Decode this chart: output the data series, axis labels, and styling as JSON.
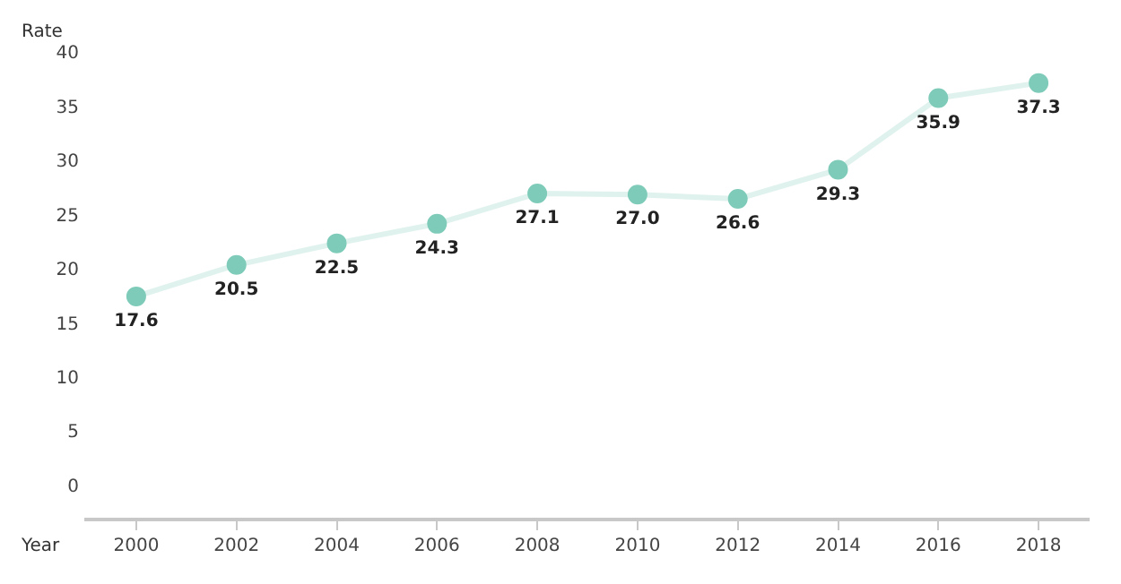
{
  "chart_data": {
    "type": "line",
    "xlabel": "Year",
    "ylabel": "Rate",
    "categories": [
      "2000",
      "2002",
      "2004",
      "2006",
      "2008",
      "2010",
      "2012",
      "2014",
      "2016",
      "2018"
    ],
    "series": [
      {
        "color": "#7ecbb9",
        "values": [
          17.6,
          20.5,
          22.5,
          24.3,
          27.1,
          27.0,
          26.6,
          29.3,
          35.9,
          37.3
        ],
        "value_labels": [
          "17.6",
          "20.5",
          "22.5",
          "24.3",
          "27.1",
          "27.0",
          "26.6",
          "29.3",
          "35.9",
          "37.3"
        ]
      }
    ],
    "ylim": [
      -3,
      40
    ],
    "yticks": [
      0,
      5,
      10,
      15,
      20,
      25,
      30,
      35,
      40
    ],
    "grid": false,
    "legend": false,
    "marker": "circle"
  }
}
